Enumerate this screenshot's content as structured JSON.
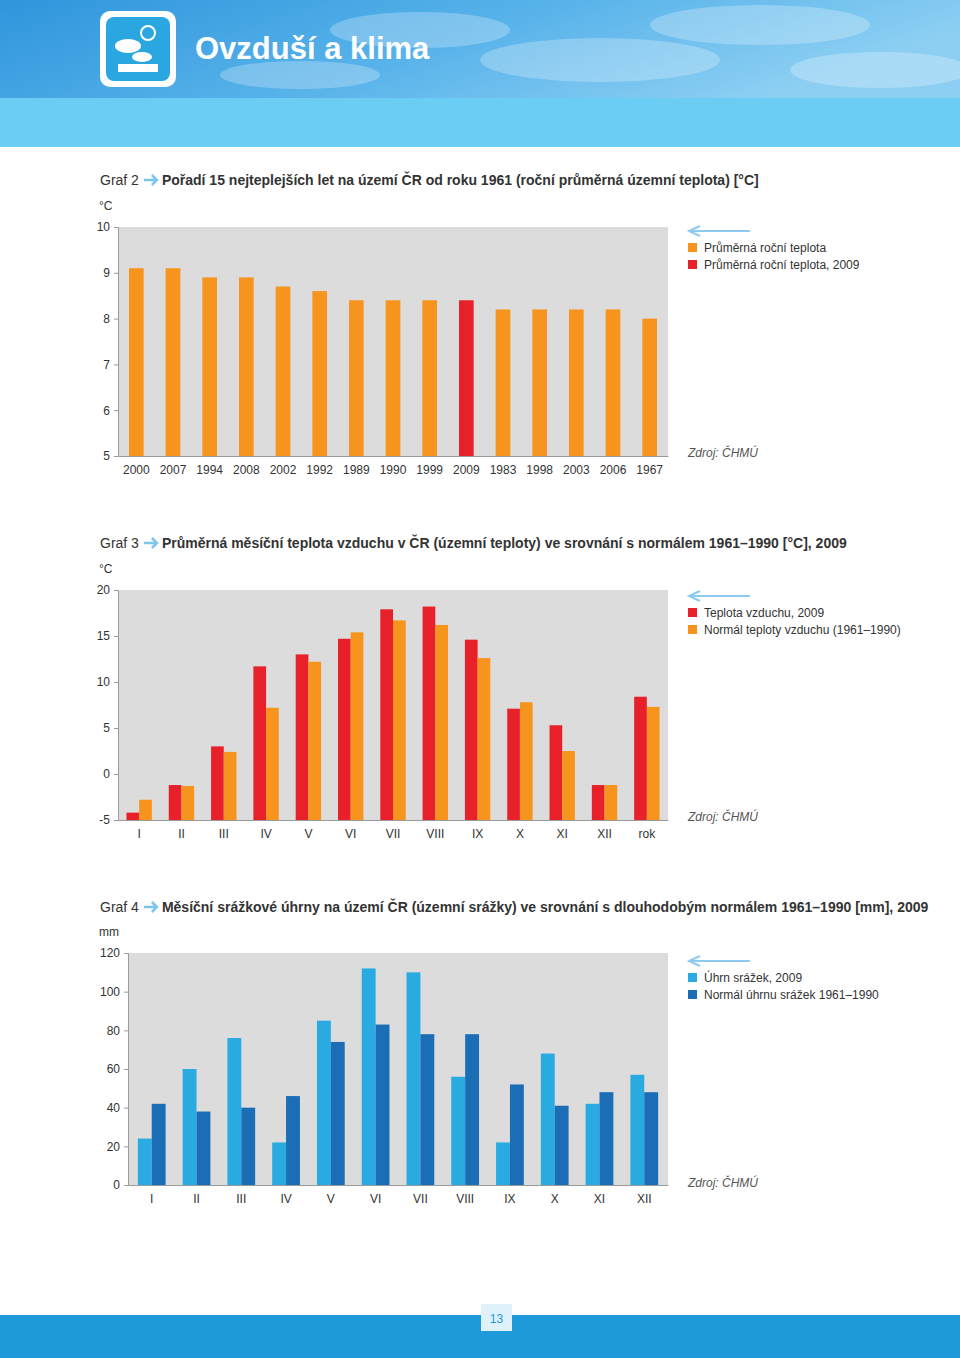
{
  "header": {
    "title": "Ovzduší a klima"
  },
  "page_number": 13,
  "chart_data": [
    {
      "type": "bar",
      "figure_label": "Graf 2",
      "title": "Pořadí 15 nejteplejších let na území ČR od roku 1961 (roční průměrná územní teplota) [°C]",
      "y_label": "°C",
      "source": "Zdroj: ČHMÚ",
      "categories": [
        "2000",
        "2007",
        "1994",
        "2008",
        "2002",
        "1992",
        "1989",
        "1990",
        "1999",
        "2009",
        "1983",
        "1998",
        "2003",
        "2006",
        "1967"
      ],
      "series": [
        {
          "name": "Průměrná roční teplota",
          "color": "#f7941d",
          "values": [
            9.1,
            9.1,
            8.9,
            8.9,
            8.7,
            8.6,
            8.4,
            8.4,
            8.4,
            null,
            8.2,
            8.2,
            8.2,
            8.2,
            8.0
          ]
        },
        {
          "name": "Průměrná roční teplota, 2009",
          "color": "#e8202a",
          "values": [
            null,
            null,
            null,
            null,
            null,
            null,
            null,
            null,
            null,
            8.4,
            null,
            null,
            null,
            null,
            null
          ]
        }
      ],
      "stacked": true,
      "ylim": [
        5,
        10
      ],
      "yticks": [
        5,
        6,
        7,
        8,
        9,
        10
      ],
      "grid": false,
      "legend": "right"
    },
    {
      "type": "bar",
      "figure_label": "Graf 3",
      "title": "Průměrná měsíční teplota vzduchu v ČR (územní teploty) ve srovnání s normálem 1961–1990 [°C], 2009",
      "y_label": "°C",
      "source": "Zdroj: ČHMÚ",
      "categories": [
        "I",
        "II",
        "III",
        "IV",
        "V",
        "VI",
        "VII",
        "VIII",
        "IX",
        "X",
        "XI",
        "XII",
        "rok"
      ],
      "series": [
        {
          "name": "Teplota vzduchu, 2009",
          "color": "#e8202a",
          "values": [
            -4.2,
            -1.2,
            3.0,
            11.7,
            13.0,
            14.7,
            17.9,
            18.2,
            14.6,
            7.1,
            5.3,
            -1.2,
            8.4
          ]
        },
        {
          "name": "Normál teploty vzduchu (1961–1990)",
          "color": "#f7941d",
          "values": [
            -2.8,
            -1.3,
            2.4,
            7.2,
            12.2,
            15.4,
            16.7,
            16.2,
            12.6,
            7.8,
            2.5,
            -1.2,
            7.3
          ]
        }
      ],
      "stacked": false,
      "ylim": [
        -5,
        20
      ],
      "yticks": [
        -5,
        0,
        5,
        10,
        15,
        20
      ],
      "grid": false,
      "legend": "right"
    },
    {
      "type": "bar",
      "figure_label": "Graf 4",
      "title": "Měsíční srážkové úhrny na území ČR (územní srážky) ve srovnání s dlouhodobým normálem 1961–1990 [mm], 2009",
      "y_label": "mm",
      "source": "Zdroj: ČHMÚ",
      "categories": [
        "I",
        "II",
        "III",
        "IV",
        "V",
        "VI",
        "VII",
        "VIII",
        "IX",
        "X",
        "XI",
        "XII"
      ],
      "series": [
        {
          "name": "Úhrn srážek, 2009",
          "color": "#29abe2",
          "values": [
            24,
            60,
            76,
            22,
            85,
            112,
            110,
            56,
            22,
            68,
            42,
            57
          ]
        },
        {
          "name": "Normál úhrnu srážek 1961–1990",
          "color": "#1b6db5",
          "values": [
            42,
            38,
            40,
            46,
            74,
            83,
            78,
            78,
            52,
            41,
            48,
            48
          ]
        }
      ],
      "stacked": false,
      "ylim": [
        0,
        120
      ],
      "yticks": [
        0,
        20,
        40,
        60,
        80,
        100,
        120
      ],
      "grid": false,
      "legend": "right"
    }
  ]
}
